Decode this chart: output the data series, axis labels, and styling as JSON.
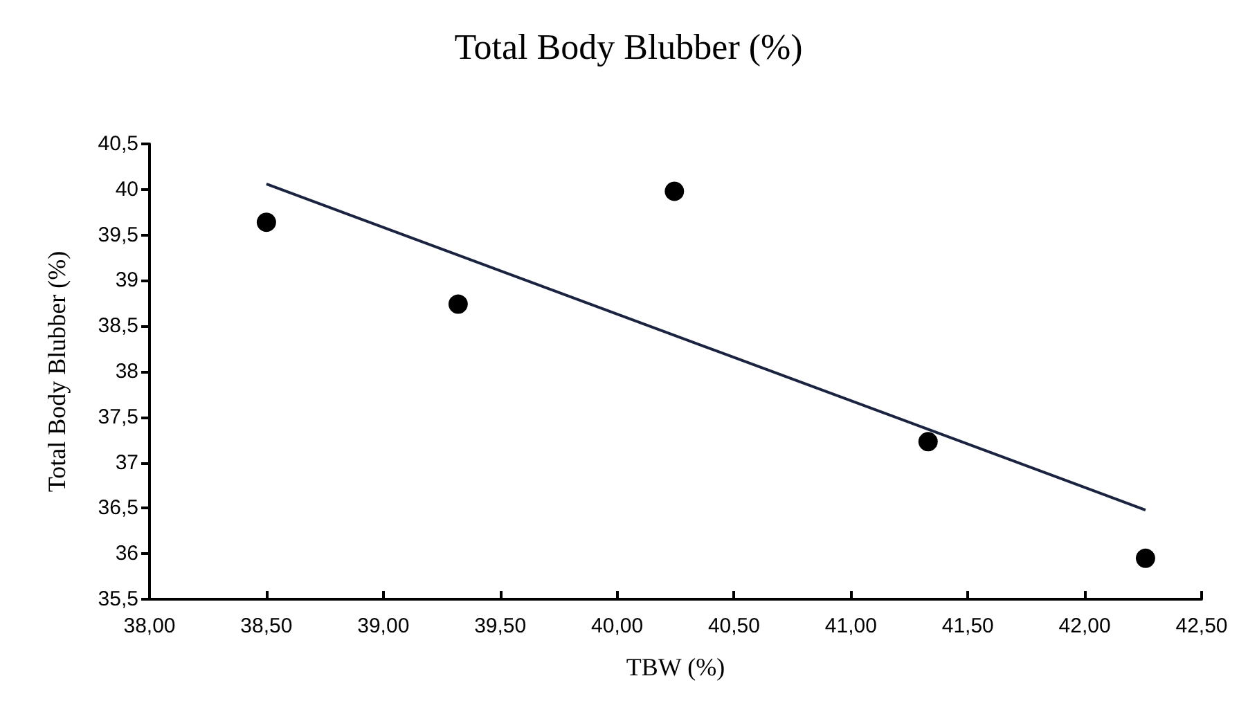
{
  "chart_data": {
    "type": "scatter",
    "title": "Total Body Blubber (%)",
    "xlabel": "TBW (%)",
    "ylabel": "Total Body Blubber (%)",
    "series": [
      {
        "color": "#000000",
        "x": [
          38.5,
          39.32,
          40.245,
          41.33,
          42.26
        ],
        "values": [
          39.64,
          38.74,
          39.98,
          37.23,
          35.95
        ],
        "marker": "circle"
      },
      {
        "type": "line",
        "color": "#1a2340",
        "x": [
          38.5,
          42.26
        ],
        "values": [
          40.06,
          36.48
        ],
        "marker": "none",
        "line_style": "solid"
      }
    ],
    "xlim": [
      38,
      42.5
    ],
    "xticks": [
      {
        "value": 38,
        "label": "38,00"
      },
      {
        "value": 38.5,
        "label": "38,50"
      },
      {
        "value": 39,
        "label": "39,00"
      },
      {
        "value": 39.5,
        "label": "39,50"
      },
      {
        "value": 40,
        "label": "40,00"
      },
      {
        "value": 40.5,
        "label": "40,50"
      },
      {
        "value": 41,
        "label": "41,00"
      },
      {
        "value": 41.5,
        "label": "41,50"
      },
      {
        "value": 42,
        "label": "42,00"
      },
      {
        "value": 42.5,
        "label": "42,50"
      }
    ],
    "ylim": [
      35.5,
      40.5
    ],
    "yticks": [
      {
        "value": 35.5,
        "label": "35,5"
      },
      36,
      {
        "value": 36.5,
        "label": "36,5"
      },
      37,
      {
        "value": 37.5,
        "label": "37,5"
      },
      38,
      {
        "value": 38.5,
        "label": "38,5"
      },
      39,
      {
        "value": 39.5,
        "label": "39,5"
      },
      40,
      {
        "value": 40.5,
        "label": "40,5"
      }
    ],
    "grid": false
  }
}
